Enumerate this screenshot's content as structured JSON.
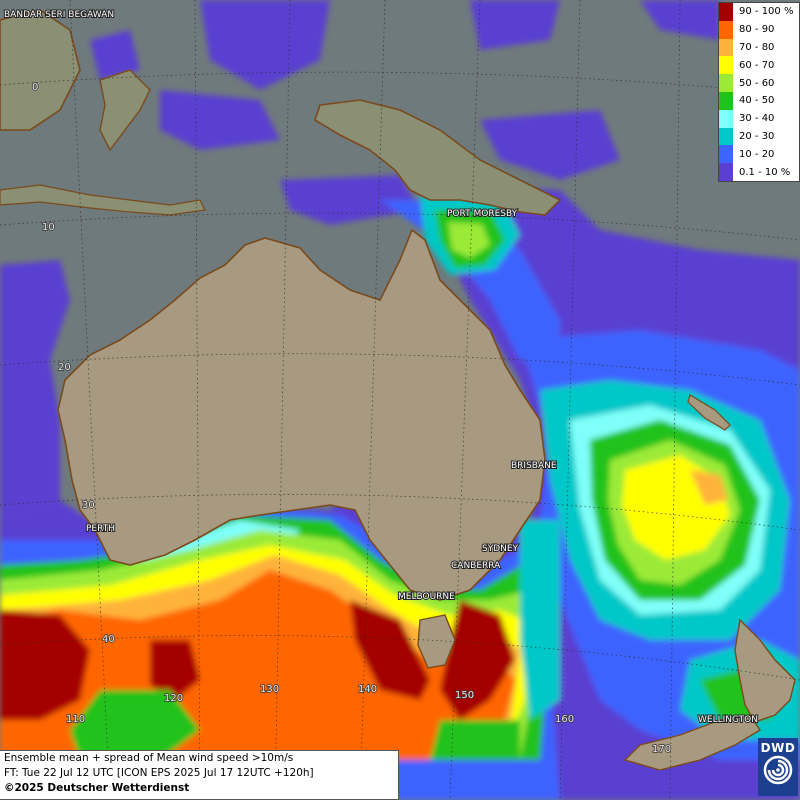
{
  "map": {
    "cities": [
      {
        "name": "BANDAR SERI BEGAWAN"
      },
      {
        "name": "PORT MORESBY"
      },
      {
        "name": "BRISBANE"
      },
      {
        "name": "PERTH"
      },
      {
        "name": "SYDNEY"
      },
      {
        "name": "CANBERRA"
      },
      {
        "name": "MELBOURNE"
      },
      {
        "name": "WELLINGTON"
      }
    ],
    "lat_labels": [
      "0",
      "10",
      "20",
      "30",
      "40"
    ],
    "lon_labels": [
      "110",
      "120",
      "130",
      "140",
      "150",
      "160",
      "170"
    ]
  },
  "legend": {
    "items": [
      {
        "label": "90 - 100 %",
        "color": "#a50000"
      },
      {
        "label": "80 - 90",
        "color": "#ff6600"
      },
      {
        "label": "70 - 80",
        "color": "#ffb33a"
      },
      {
        "label": "60 - 70",
        "color": "#ffff00"
      },
      {
        "label": "50 - 60",
        "color": "#9bea38"
      },
      {
        "label": "40 - 50",
        "color": "#22c21d"
      },
      {
        "label": "30 - 40",
        "color": "#7ffff9"
      },
      {
        "label": "20 - 30",
        "color": "#00c8c8"
      },
      {
        "label": "10 - 20",
        "color": "#3c64ff"
      },
      {
        "label": "0.1 - 10 %",
        "color": "#5a3fd1"
      }
    ]
  },
  "info": {
    "line1": "Ensemble mean + spread of Mean wind speed >10m/s",
    "line2": "FT: Tue 22 Jul 12 UTC [ICON EPS 2025 Jul 17 12UTC +120h]",
    "line3": "©2025 Deutscher Wetterdienst"
  },
  "logo": {
    "text": "DWD",
    "icon": "dwd-swirl-icon"
  }
}
